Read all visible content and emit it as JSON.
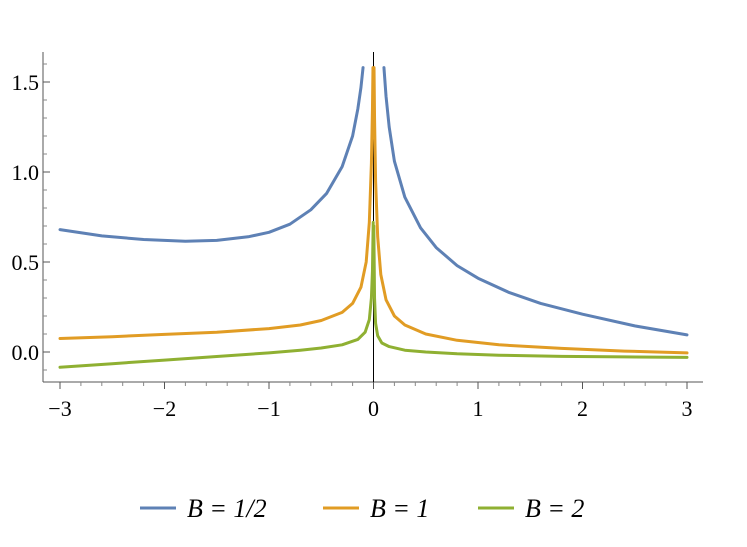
{
  "chart_data": {
    "type": "line",
    "title": "",
    "xlabel": "",
    "ylabel": "",
    "xlim": [
      -3,
      3
    ],
    "ylim": [
      -0.18,
      1.65
    ],
    "x_ticks": [
      -3,
      -2,
      -1,
      0,
      1,
      2,
      3
    ],
    "x_tick_labels": [
      "−3",
      "−2",
      "−1",
      "0",
      "1",
      "2",
      "3"
    ],
    "y_ticks": [
      0.0,
      0.5,
      1.0,
      1.5
    ],
    "y_tick_labels": [
      "0.0",
      "0.5",
      "1.0",
      "1.5"
    ],
    "grid": false,
    "legend_position": "bottom",
    "series": [
      {
        "name": "B = 1/2",
        "color": "#5E81B5",
        "points": [
          [
            -3.0,
            0.68
          ],
          [
            -2.6,
            0.645
          ],
          [
            -2.2,
            0.625
          ],
          [
            -1.8,
            0.615
          ],
          [
            -1.5,
            0.62
          ],
          [
            -1.2,
            0.64
          ],
          [
            -1.0,
            0.665
          ],
          [
            -0.8,
            0.71
          ],
          [
            -0.6,
            0.79
          ],
          [
            -0.45,
            0.88
          ],
          [
            -0.3,
            1.03
          ],
          [
            -0.2,
            1.2
          ],
          [
            -0.15,
            1.35
          ],
          [
            -0.12,
            1.47
          ],
          [
            -0.1,
            1.58
          ],
          null,
          [
            0.1,
            1.58
          ],
          [
            0.12,
            1.42
          ],
          [
            0.15,
            1.25
          ],
          [
            0.2,
            1.06
          ],
          [
            0.3,
            0.86
          ],
          [
            0.45,
            0.69
          ],
          [
            0.6,
            0.58
          ],
          [
            0.8,
            0.48
          ],
          [
            1.0,
            0.41
          ],
          [
            1.3,
            0.33
          ],
          [
            1.6,
            0.27
          ],
          [
            2.0,
            0.21
          ],
          [
            2.5,
            0.145
          ],
          [
            3.0,
            0.095
          ]
        ]
      },
      {
        "name": "B = 1",
        "color": "#E19C24",
        "points": [
          [
            -3.0,
            0.075
          ],
          [
            -2.5,
            0.085
          ],
          [
            -2.0,
            0.098
          ],
          [
            -1.5,
            0.11
          ],
          [
            -1.0,
            0.13
          ],
          [
            -0.7,
            0.15
          ],
          [
            -0.5,
            0.175
          ],
          [
            -0.3,
            0.22
          ],
          [
            -0.2,
            0.27
          ],
          [
            -0.12,
            0.36
          ],
          [
            -0.07,
            0.5
          ],
          [
            -0.04,
            0.72
          ],
          [
            -0.02,
            1.05
          ],
          [
            -0.01,
            1.35
          ],
          [
            -0.005,
            1.58
          ],
          null,
          [
            0.005,
            1.58
          ],
          [
            0.01,
            1.3
          ],
          [
            0.02,
            0.95
          ],
          [
            0.04,
            0.64
          ],
          [
            0.07,
            0.43
          ],
          [
            0.12,
            0.29
          ],
          [
            0.2,
            0.2
          ],
          [
            0.3,
            0.15
          ],
          [
            0.5,
            0.1
          ],
          [
            0.8,
            0.065
          ],
          [
            1.2,
            0.04
          ],
          [
            1.8,
            0.02
          ],
          [
            2.4,
            0.005
          ],
          [
            3.0,
            -0.005
          ]
        ]
      },
      {
        "name": "B = 2",
        "color": "#8FB032",
        "points": [
          [
            -3.0,
            -0.085
          ],
          [
            -2.5,
            -0.065
          ],
          [
            -2.0,
            -0.045
          ],
          [
            -1.5,
            -0.025
          ],
          [
            -1.0,
            -0.005
          ],
          [
            -0.7,
            0.01
          ],
          [
            -0.5,
            0.022
          ],
          [
            -0.3,
            0.04
          ],
          [
            -0.15,
            0.07
          ],
          [
            -0.08,
            0.11
          ],
          [
            -0.04,
            0.18
          ],
          [
            -0.02,
            0.3
          ],
          [
            -0.01,
            0.45
          ],
          [
            -0.003,
            0.72
          ],
          null,
          [
            0.003,
            0.7
          ],
          [
            0.01,
            0.3
          ],
          [
            0.02,
            0.16
          ],
          [
            0.04,
            0.09
          ],
          [
            0.08,
            0.05
          ],
          [
            0.15,
            0.03
          ],
          [
            0.3,
            0.01
          ],
          [
            0.5,
            0.0
          ],
          [
            0.8,
            -0.01
          ],
          [
            1.2,
            -0.018
          ],
          [
            1.8,
            -0.024
          ],
          [
            2.4,
            -0.027
          ],
          [
            3.0,
            -0.03
          ]
        ]
      }
    ]
  }
}
